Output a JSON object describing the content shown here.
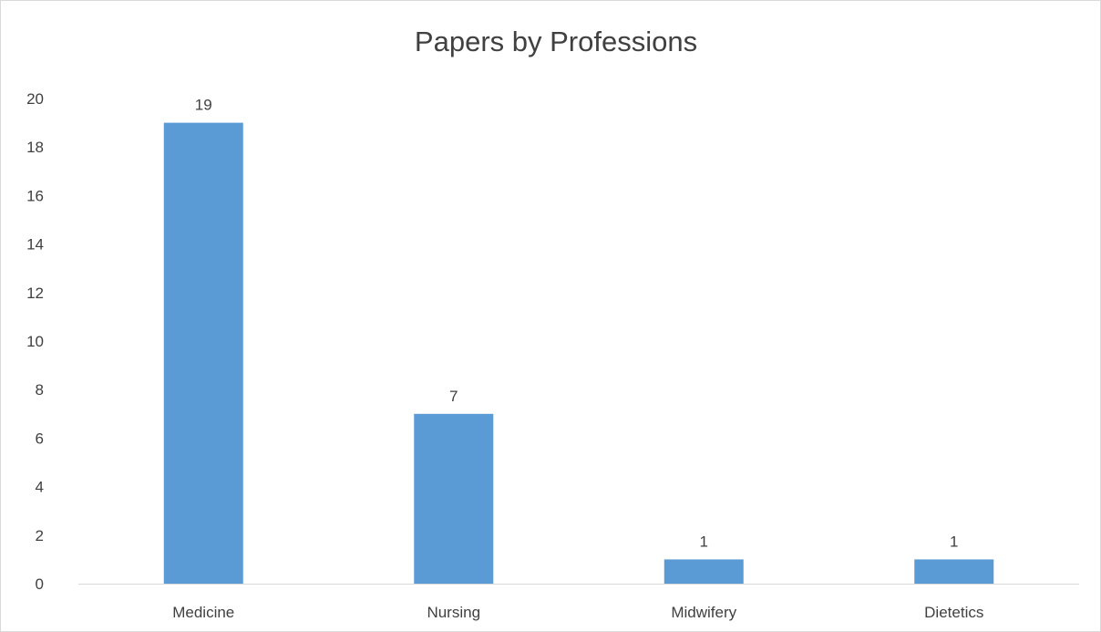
{
  "chart_data": {
    "type": "bar",
    "title": "Papers by Professions",
    "categories": [
      "Medicine",
      "Nursing",
      "Midwifery",
      "Dietetics"
    ],
    "values": [
      19,
      7,
      1,
      1
    ],
    "data_labels": [
      "19",
      "7",
      "1",
      "1"
    ],
    "ylim": [
      0,
      20
    ],
    "yticks": [
      "0",
      "2",
      "4",
      "6",
      "8",
      "10",
      "12",
      "14",
      "16",
      "18",
      "20"
    ],
    "xlabel": "",
    "ylabel": "",
    "grid": false,
    "legend": "none",
    "bar_color": "#5b9bd5",
    "axis_color": "#d9d9d9",
    "text_color": "#404040"
  }
}
